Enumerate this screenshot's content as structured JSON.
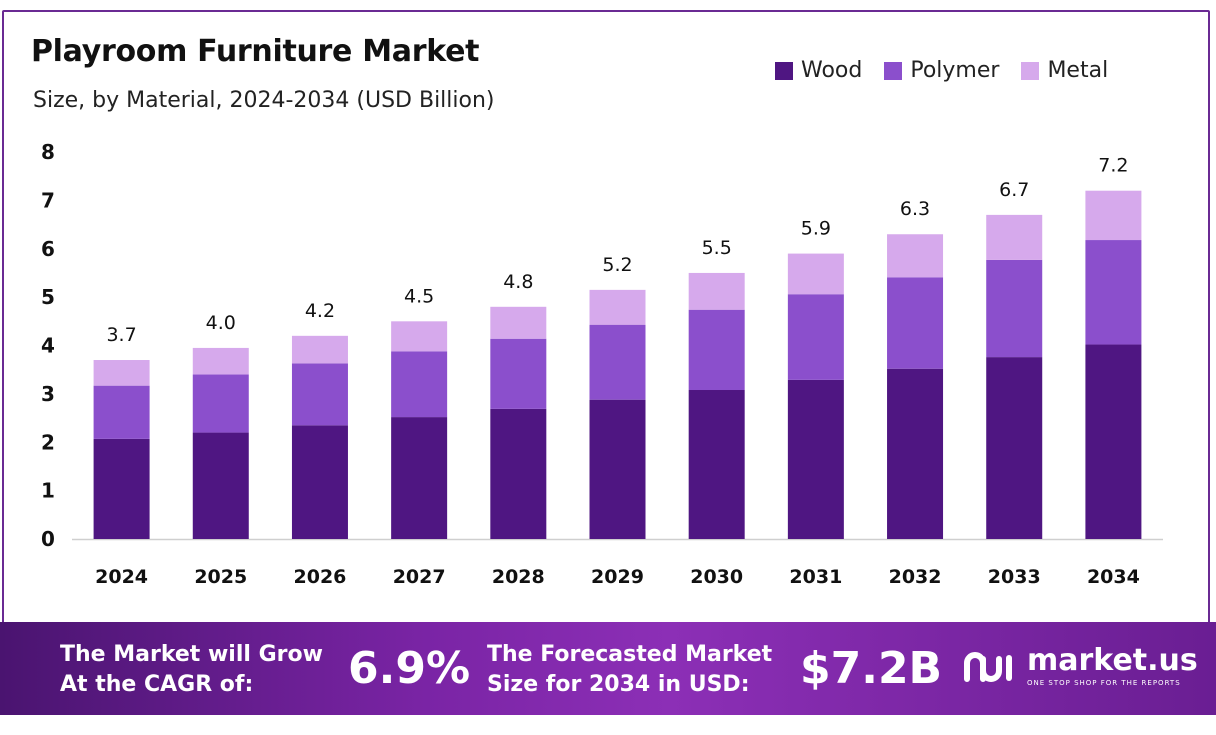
{
  "header": {
    "title": "Playroom Furniture Market",
    "subtitle": "Size, by Material, 2024-2034 (USD Billion)"
  },
  "colors": {
    "wood": "#4f1682",
    "polymer": "#8b4fcc",
    "metal": "#d6a9ec",
    "frame": "#6a2a93"
  },
  "chart_data": {
    "type": "bar",
    "stacked": true,
    "categories": [
      "2024",
      "2025",
      "2026",
      "2027",
      "2028",
      "2029",
      "2030",
      "2031",
      "2032",
      "2033",
      "2034"
    ],
    "series": [
      {
        "name": "Wood",
        "values": [
          2.07,
          2.2,
          2.35,
          2.52,
          2.69,
          2.88,
          3.08,
          3.29,
          3.52,
          3.76,
          4.02
        ]
      },
      {
        "name": "Polymer",
        "values": [
          1.1,
          1.2,
          1.28,
          1.36,
          1.45,
          1.55,
          1.66,
          1.77,
          1.89,
          2.01,
          2.16
        ]
      },
      {
        "name": "Metal",
        "values": [
          0.53,
          0.55,
          0.57,
          0.62,
          0.66,
          0.72,
          0.76,
          0.84,
          0.89,
          0.93,
          1.02
        ]
      }
    ],
    "totals": [
      "3.7",
      "4.0",
      "4.2",
      "4.5",
      "4.8",
      "5.2",
      "5.5",
      "5.9",
      "6.3",
      "6.7",
      "7.2"
    ],
    "ylim": [
      0,
      8
    ],
    "yticks": [
      0,
      1,
      2,
      3,
      4,
      5,
      6,
      7,
      8
    ],
    "legend_position": "top-right",
    "grid": false
  },
  "banner": {
    "cagr_text": "The Market will Grow\nAt the CAGR of:",
    "cagr_value": "6.9%",
    "forecast_text": "The Forecasted Market\nSize for 2034 in USD:",
    "forecast_value": "$7.2B",
    "brand_name": "market.us",
    "brand_tagline": "ONE STOP SHOP FOR THE REPORTS"
  }
}
